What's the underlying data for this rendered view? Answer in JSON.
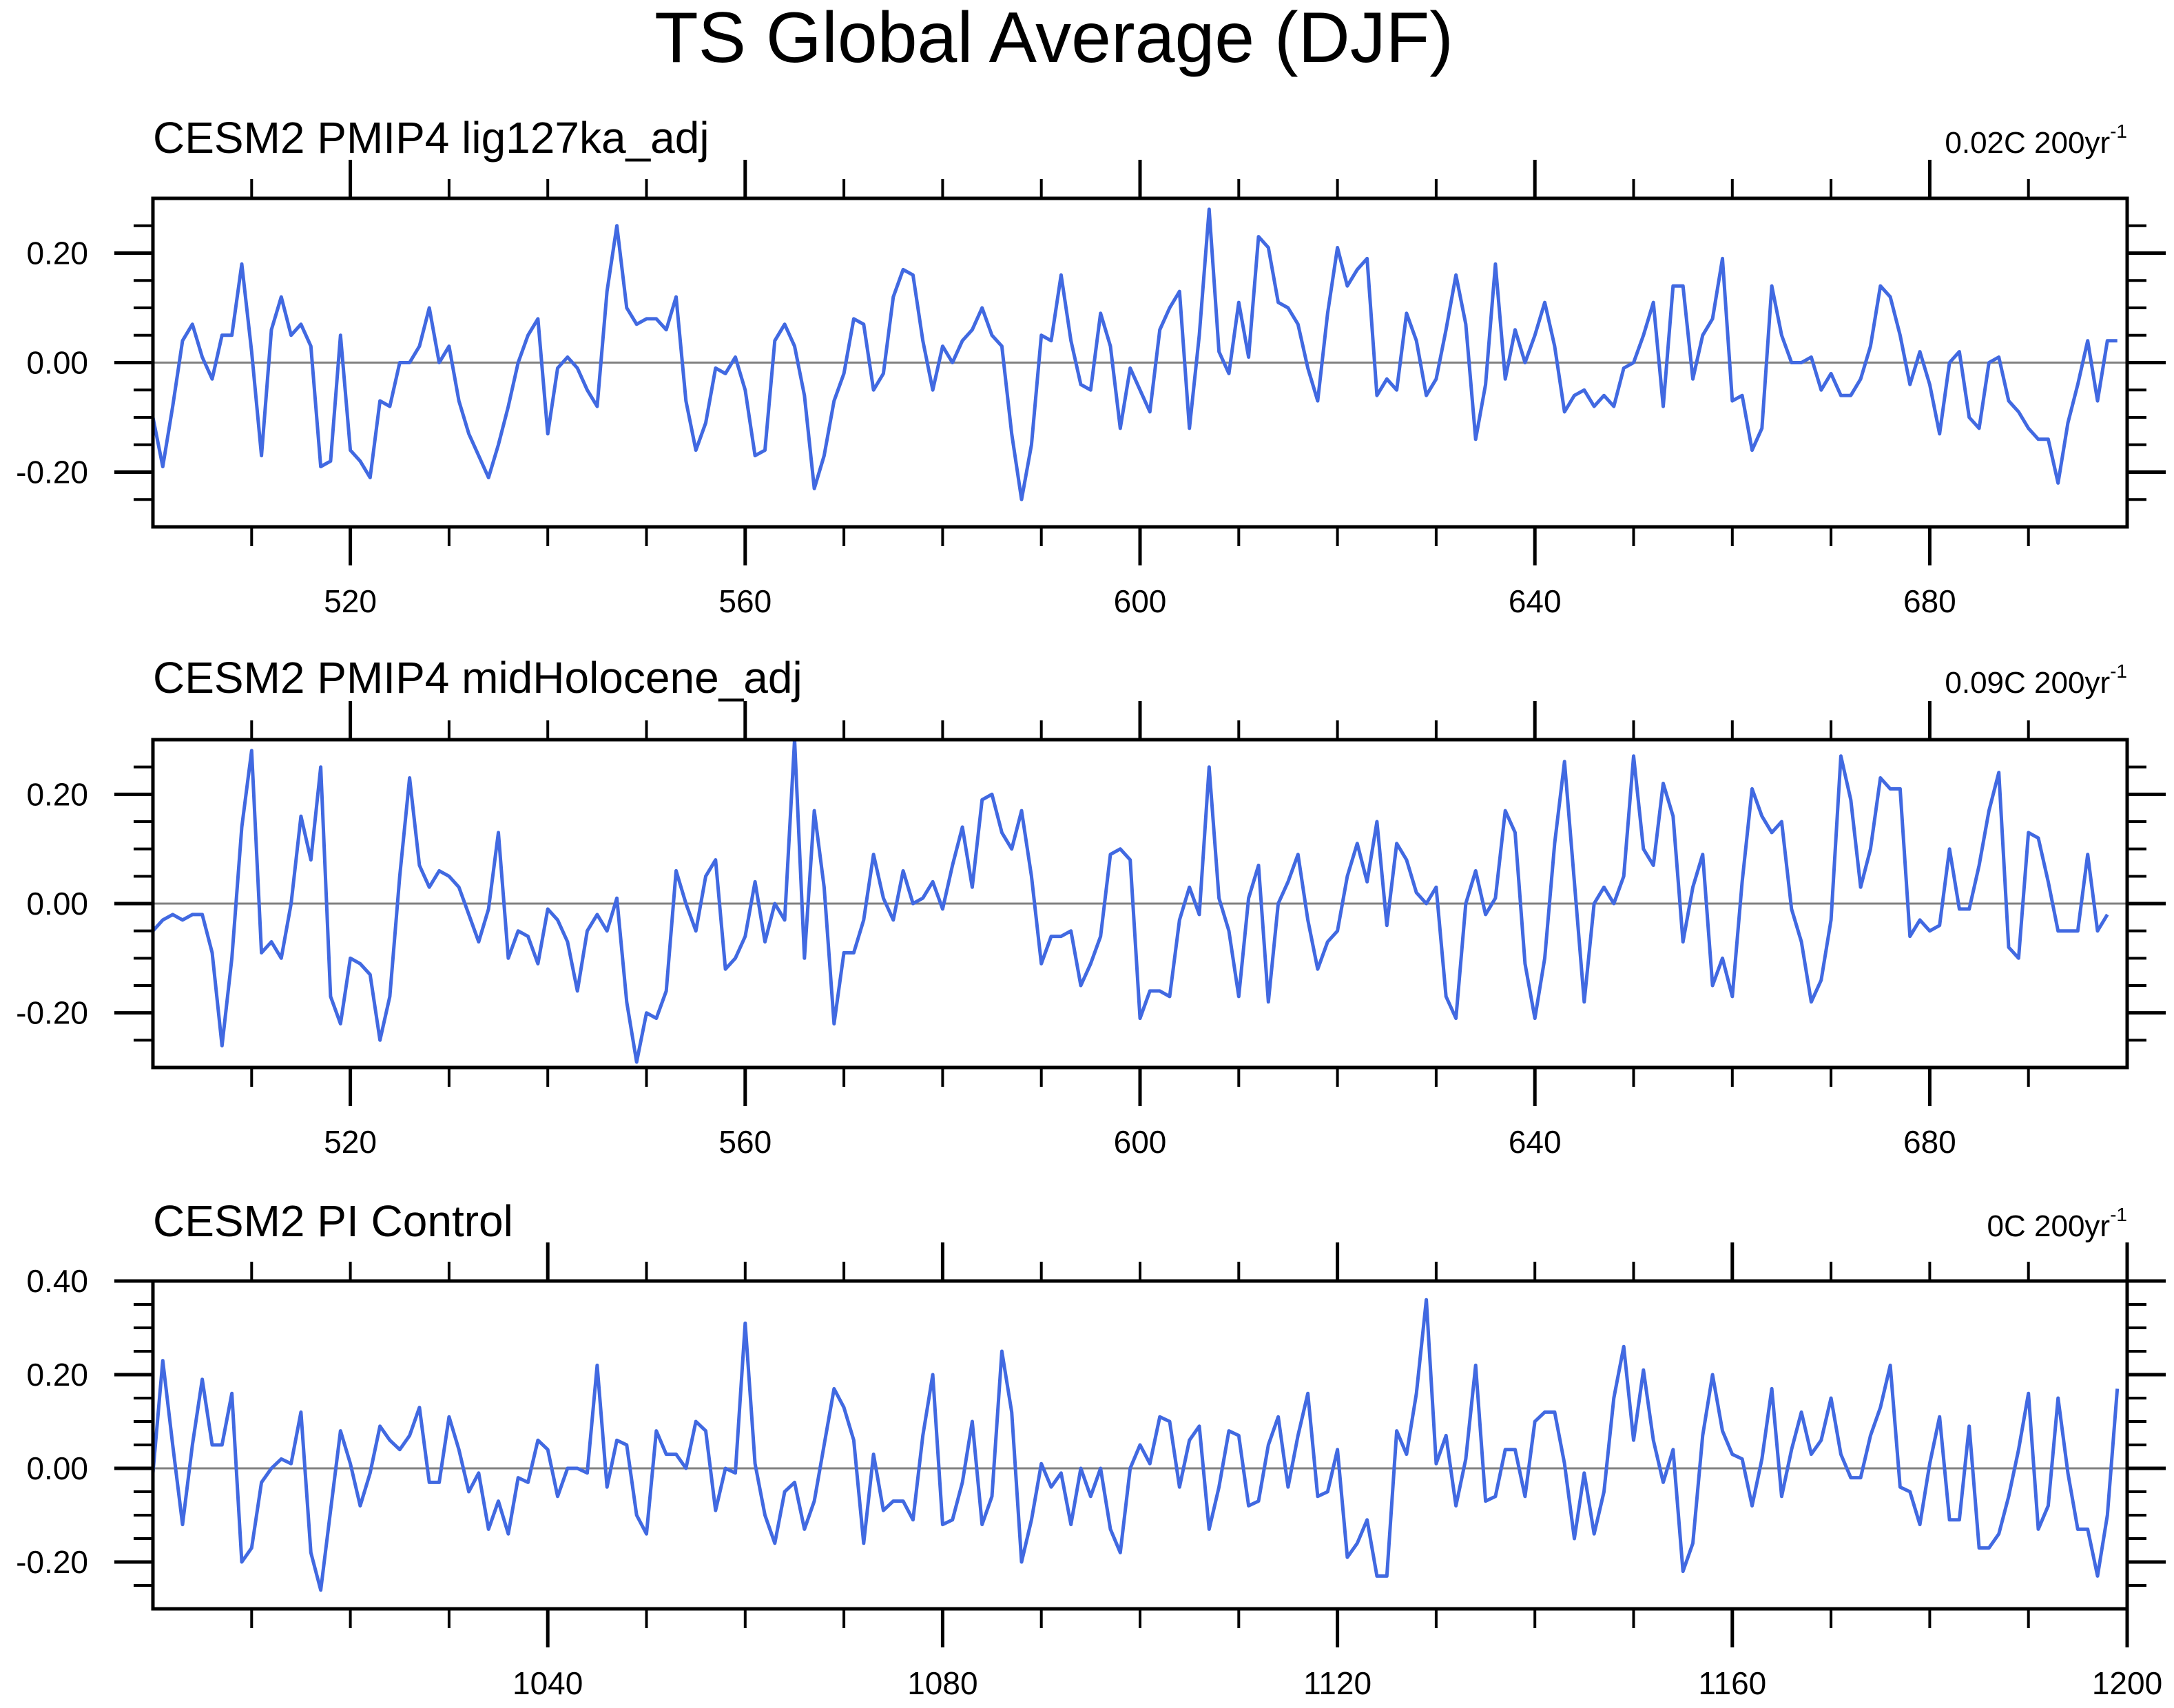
{
  "figure_title": "TS Global Average (DJF)",
  "colors": {
    "series": "#4169e1",
    "zero_line": "#808080",
    "frame": "#000000"
  },
  "chart_data": [
    {
      "type": "line",
      "title": "CESM2 PMIP4 lig127ka_adj",
      "trend": "0.02C 200yr",
      "trend_sup": "-1",
      "xlim": [
        500,
        700
      ],
      "ylim": [
        -0.3,
        0.3
      ],
      "xticks": [
        520,
        560,
        600,
        640,
        680
      ],
      "xtick_labels": [
        "520",
        "560",
        "600",
        "640",
        "680"
      ],
      "yticks": [
        -0.2,
        0.0,
        0.2
      ],
      "ytick_labels": [
        "-0.20",
        "0.00",
        "0.20"
      ],
      "x_start": 500,
      "values": [
        -0.1,
        -0.19,
        -0.08,
        0.04,
        0.07,
        0.01,
        -0.03,
        0.05,
        0.05,
        0.18,
        0.02,
        -0.17,
        0.06,
        0.12,
        0.05,
        0.07,
        0.03,
        -0.19,
        -0.18,
        0.05,
        -0.16,
        -0.18,
        -0.21,
        -0.07,
        -0.08,
        0.0,
        0.0,
        0.03,
        0.1,
        0.0,
        0.03,
        -0.07,
        -0.13,
        -0.17,
        -0.21,
        -0.15,
        -0.08,
        0.0,
        0.05,
        0.08,
        -0.13,
        -0.01,
        0.01,
        -0.01,
        -0.05,
        -0.08,
        0.13,
        0.25,
        0.1,
        0.07,
        0.08,
        0.08,
        0.06,
        0.12,
        -0.07,
        -0.16,
        -0.11,
        -0.01,
        -0.02,
        0.01,
        -0.05,
        -0.17,
        -0.16,
        0.04,
        0.07,
        0.03,
        -0.06,
        -0.23,
        -0.17,
        -0.07,
        -0.02,
        0.08,
        0.07,
        -0.05,
        -0.02,
        0.12,
        0.17,
        0.16,
        0.04,
        -0.05,
        0.03,
        0.0,
        0.04,
        0.06,
        0.1,
        0.05,
        0.03,
        -0.13,
        -0.25,
        -0.15,
        0.05,
        0.04,
        0.16,
        0.04,
        -0.04,
        -0.05,
        0.09,
        0.03,
        -0.12,
        -0.01,
        -0.05,
        -0.09,
        0.06,
        0.1,
        0.13,
        -0.12,
        0.05,
        0.28,
        0.02,
        -0.02,
        0.11,
        0.01,
        0.23,
        0.21,
        0.11,
        0.1,
        0.07,
        -0.01,
        -0.07,
        0.09,
        0.21,
        0.14,
        0.17,
        0.19,
        -0.06,
        -0.03,
        -0.05,
        0.09,
        0.04,
        -0.06,
        -0.03,
        0.06,
        0.16,
        0.07,
        -0.14,
        -0.04,
        0.18,
        -0.03,
        0.06,
        0.0,
        0.05,
        0.11,
        0.03,
        -0.09,
        -0.06,
        -0.05,
        -0.08,
        -0.06,
        -0.08,
        -0.01,
        0.0,
        0.05,
        0.11,
        -0.08,
        0.14,
        0.14,
        -0.03,
        0.05,
        0.08,
        0.19,
        -0.07,
        -0.06,
        -0.16,
        -0.12,
        0.14,
        0.05,
        0.0,
        0.0,
        0.01,
        -0.05,
        -0.02,
        -0.06,
        -0.06,
        -0.03,
        0.03,
        0.14,
        0.12,
        0.05,
        -0.04,
        0.02,
        -0.04,
        -0.13,
        0.0,
        0.02,
        -0.1,
        -0.12,
        0.0,
        0.01,
        -0.07,
        -0.09,
        -0.12,
        -0.14,
        -0.14,
        -0.22,
        -0.11,
        -0.04,
        0.04,
        -0.07,
        0.04,
        0.04
      ]
    },
    {
      "type": "line",
      "title": "CESM2 PMIP4 midHolocene_adj",
      "trend": "0.09C 200yr",
      "trend_sup": "-1",
      "xlim": [
        500,
        700
      ],
      "ylim": [
        -0.3,
        0.3
      ],
      "xticks": [
        520,
        560,
        600,
        640,
        680
      ],
      "xtick_labels": [
        "520",
        "560",
        "600",
        "640",
        "680"
      ],
      "yticks": [
        -0.2,
        0.0,
        0.2
      ],
      "ytick_labels": [
        "-0.20",
        "0.00",
        "0.20"
      ],
      "x_start": 500,
      "values": [
        -0.05,
        -0.03,
        -0.02,
        -0.03,
        -0.02,
        -0.02,
        -0.09,
        -0.26,
        -0.1,
        0.14,
        0.28,
        -0.09,
        -0.07,
        -0.1,
        0.0,
        0.16,
        0.08,
        0.25,
        -0.17,
        -0.22,
        -0.1,
        -0.11,
        -0.13,
        -0.25,
        -0.17,
        0.05,
        0.23,
        0.07,
        0.03,
        0.06,
        0.05,
        0.03,
        -0.02,
        -0.07,
        -0.01,
        0.13,
        -0.1,
        -0.05,
        -0.06,
        -0.11,
        -0.01,
        -0.03,
        -0.07,
        -0.16,
        -0.05,
        -0.02,
        -0.05,
        0.01,
        -0.18,
        -0.29,
        -0.2,
        -0.21,
        -0.16,
        0.06,
        0.0,
        -0.05,
        0.05,
        0.08,
        -0.12,
        -0.1,
        -0.06,
        0.04,
        -0.07,
        0.0,
        -0.03,
        0.3,
        -0.1,
        0.17,
        0.03,
        -0.22,
        -0.09,
        -0.09,
        -0.03,
        0.09,
        0.01,
        -0.03,
        0.06,
        0.0,
        0.01,
        0.04,
        -0.01,
        0.07,
        0.14,
        0.03,
        0.19,
        0.2,
        0.13,
        0.1,
        0.17,
        0.05,
        -0.11,
        -0.06,
        -0.06,
        -0.05,
        -0.15,
        -0.11,
        -0.06,
        0.09,
        0.1,
        0.08,
        -0.21,
        -0.16,
        -0.16,
        -0.17,
        -0.03,
        0.03,
        -0.02,
        0.25,
        0.01,
        -0.05,
        -0.17,
        0.01,
        0.07,
        -0.18,
        0.0,
        0.04,
        0.09,
        -0.03,
        -0.12,
        -0.07,
        -0.05,
        0.05,
        0.11,
        0.04,
        0.15,
        -0.04,
        0.11,
        0.08,
        0.02,
        0.0,
        0.03,
        -0.17,
        -0.21,
        0.0,
        0.06,
        -0.02,
        0.01,
        0.17,
        0.13,
        -0.11,
        -0.21,
        -0.1,
        0.11,
        0.26,
        0.04,
        -0.18,
        0.0,
        0.03,
        0.0,
        0.05,
        0.27,
        0.1,
        0.07,
        0.22,
        0.16,
        -0.07,
        0.03,
        0.09,
        -0.15,
        -0.1,
        -0.17,
        0.04,
        0.21,
        0.16,
        0.13,
        0.15,
        -0.01,
        -0.07,
        -0.18,
        -0.14,
        -0.03,
        0.27,
        0.19,
        0.03,
        0.1,
        0.23,
        0.21,
        0.21,
        -0.06,
        -0.03,
        -0.05,
        -0.04,
        0.1,
        -0.01,
        -0.01,
        0.07,
        0.17,
        0.24,
        -0.08,
        -0.1,
        0.13,
        0.12,
        0.04,
        -0.05,
        -0.05,
        -0.05,
        0.09,
        -0.05,
        -0.02
      ]
    },
    {
      "type": "line",
      "title": "CESM2 PI Control",
      "trend": "0C 200yr",
      "trend_sup": "-1",
      "xlim": [
        1000,
        1200
      ],
      "ylim": [
        -0.3,
        0.4
      ],
      "xticks": [
        1040,
        1080,
        1120,
        1160,
        1200
      ],
      "xtick_labels": [
        "1040",
        "1080",
        "1120",
        "1160",
        "1200"
      ],
      "yticks": [
        -0.2,
        0.0,
        0.2,
        0.4
      ],
      "ytick_labels": [
        "-0.20",
        "0.00",
        "0.20",
        "0.40"
      ],
      "x_start": 1000,
      "values": [
        -0.01,
        0.23,
        0.05,
        -0.12,
        0.05,
        0.19,
        0.05,
        0.05,
        0.16,
        -0.2,
        -0.17,
        -0.03,
        0.0,
        0.02,
        0.01,
        0.12,
        -0.18,
        -0.26,
        -0.09,
        0.08,
        0.01,
        -0.08,
        -0.01,
        0.09,
        0.06,
        0.04,
        0.07,
        0.13,
        -0.03,
        -0.03,
        0.11,
        0.04,
        -0.05,
        -0.01,
        -0.13,
        -0.07,
        -0.14,
        -0.02,
        -0.03,
        0.06,
        0.04,
        -0.06,
        0.0,
        0.0,
        -0.01,
        0.22,
        -0.04,
        0.06,
        0.05,
        -0.1,
        -0.14,
        0.08,
        0.03,
        0.03,
        0.0,
        0.1,
        0.08,
        -0.09,
        0.0,
        -0.01,
        0.31,
        0.01,
        -0.1,
        -0.16,
        -0.05,
        -0.03,
        -0.13,
        -0.07,
        0.05,
        0.17,
        0.13,
        0.06,
        -0.16,
        0.03,
        -0.09,
        -0.07,
        -0.07,
        -0.11,
        0.07,
        0.2,
        -0.12,
        -0.11,
        -0.03,
        0.1,
        -0.12,
        -0.06,
        0.25,
        0.12,
        -0.2,
        -0.11,
        0.01,
        -0.04,
        -0.01,
        -0.12,
        0.0,
        -0.06,
        0.0,
        -0.13,
        -0.18,
        0.0,
        0.05,
        0.01,
        0.11,
        0.1,
        -0.04,
        0.06,
        0.09,
        -0.13,
        -0.04,
        0.08,
        0.07,
        -0.08,
        -0.07,
        0.05,
        0.11,
        -0.04,
        0.07,
        0.16,
        -0.06,
        -0.05,
        0.04,
        -0.19,
        -0.16,
        -0.11,
        -0.23,
        -0.23,
        0.08,
        0.03,
        0.16,
        0.36,
        0.01,
        0.07,
        -0.08,
        0.02,
        0.22,
        -0.07,
        -0.06,
        0.04,
        0.04,
        -0.06,
        0.1,
        0.12,
        0.12,
        0.01,
        -0.15,
        -0.01,
        -0.14,
        -0.05,
        0.15,
        0.26,
        0.06,
        0.21,
        0.06,
        -0.03,
        0.04,
        -0.22,
        -0.16,
        0.07,
        0.2,
        0.08,
        0.03,
        0.02,
        -0.08,
        0.02,
        0.17,
        -0.06,
        0.04,
        0.12,
        0.03,
        0.06,
        0.15,
        0.03,
        -0.02,
        -0.02,
        0.07,
        0.13,
        0.22,
        -0.04,
        -0.05,
        -0.12,
        0.01,
        0.11,
        -0.11,
        -0.11,
        0.09,
        -0.17,
        -0.17,
        -0.14,
        -0.06,
        0.04,
        0.16,
        -0.13,
        -0.08,
        0.15,
        -0.01,
        -0.13,
        -0.13,
        -0.23,
        -0.1,
        0.17
      ]
    }
  ]
}
